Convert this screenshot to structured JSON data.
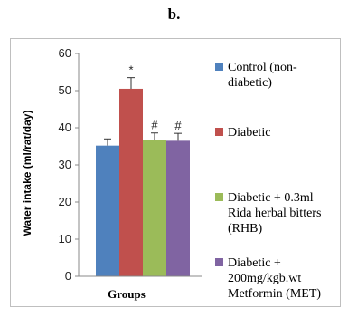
{
  "panel_label": "b.",
  "chart_data": {
    "type": "bar",
    "xlabel": "Groups",
    "ylabel": "Water intake (ml/rat/day)",
    "ylim": [
      0,
      60
    ],
    "yticks": [
      0,
      10,
      20,
      30,
      40,
      50,
      60
    ],
    "grid": false,
    "legend_position": "right",
    "series": [
      {
        "name": "Control (non-diabetic)",
        "legend_lines": [
          "Control (non-",
          "diabetic)"
        ],
        "value": 35.2,
        "error": 1.8,
        "color": "#4f81bd",
        "significance": ""
      },
      {
        "name": "Diabetic",
        "legend_lines": [
          "Diabetic"
        ],
        "value": 50.5,
        "error": 3.0,
        "color": "#c0504d",
        "significance": "*"
      },
      {
        "name": "Diabetic + 0.3ml Rida herbal bitters (RHB)",
        "legend_lines": [
          "Diabetic + 0.3ml",
          "Rida herbal bitters",
          "(RHB)"
        ],
        "value": 36.8,
        "error": 1.8,
        "color": "#9bbb59",
        "significance": "#"
      },
      {
        "name": "Diabetic + 200mg/kgb.wt Metformin (MET)",
        "legend_lines": [
          "Diabetic +",
          "200mg/kgb.wt",
          "Metformin (MET)"
        ],
        "value": 36.5,
        "error": 2.0,
        "color": "#8064a2",
        "significance": "#"
      }
    ]
  }
}
